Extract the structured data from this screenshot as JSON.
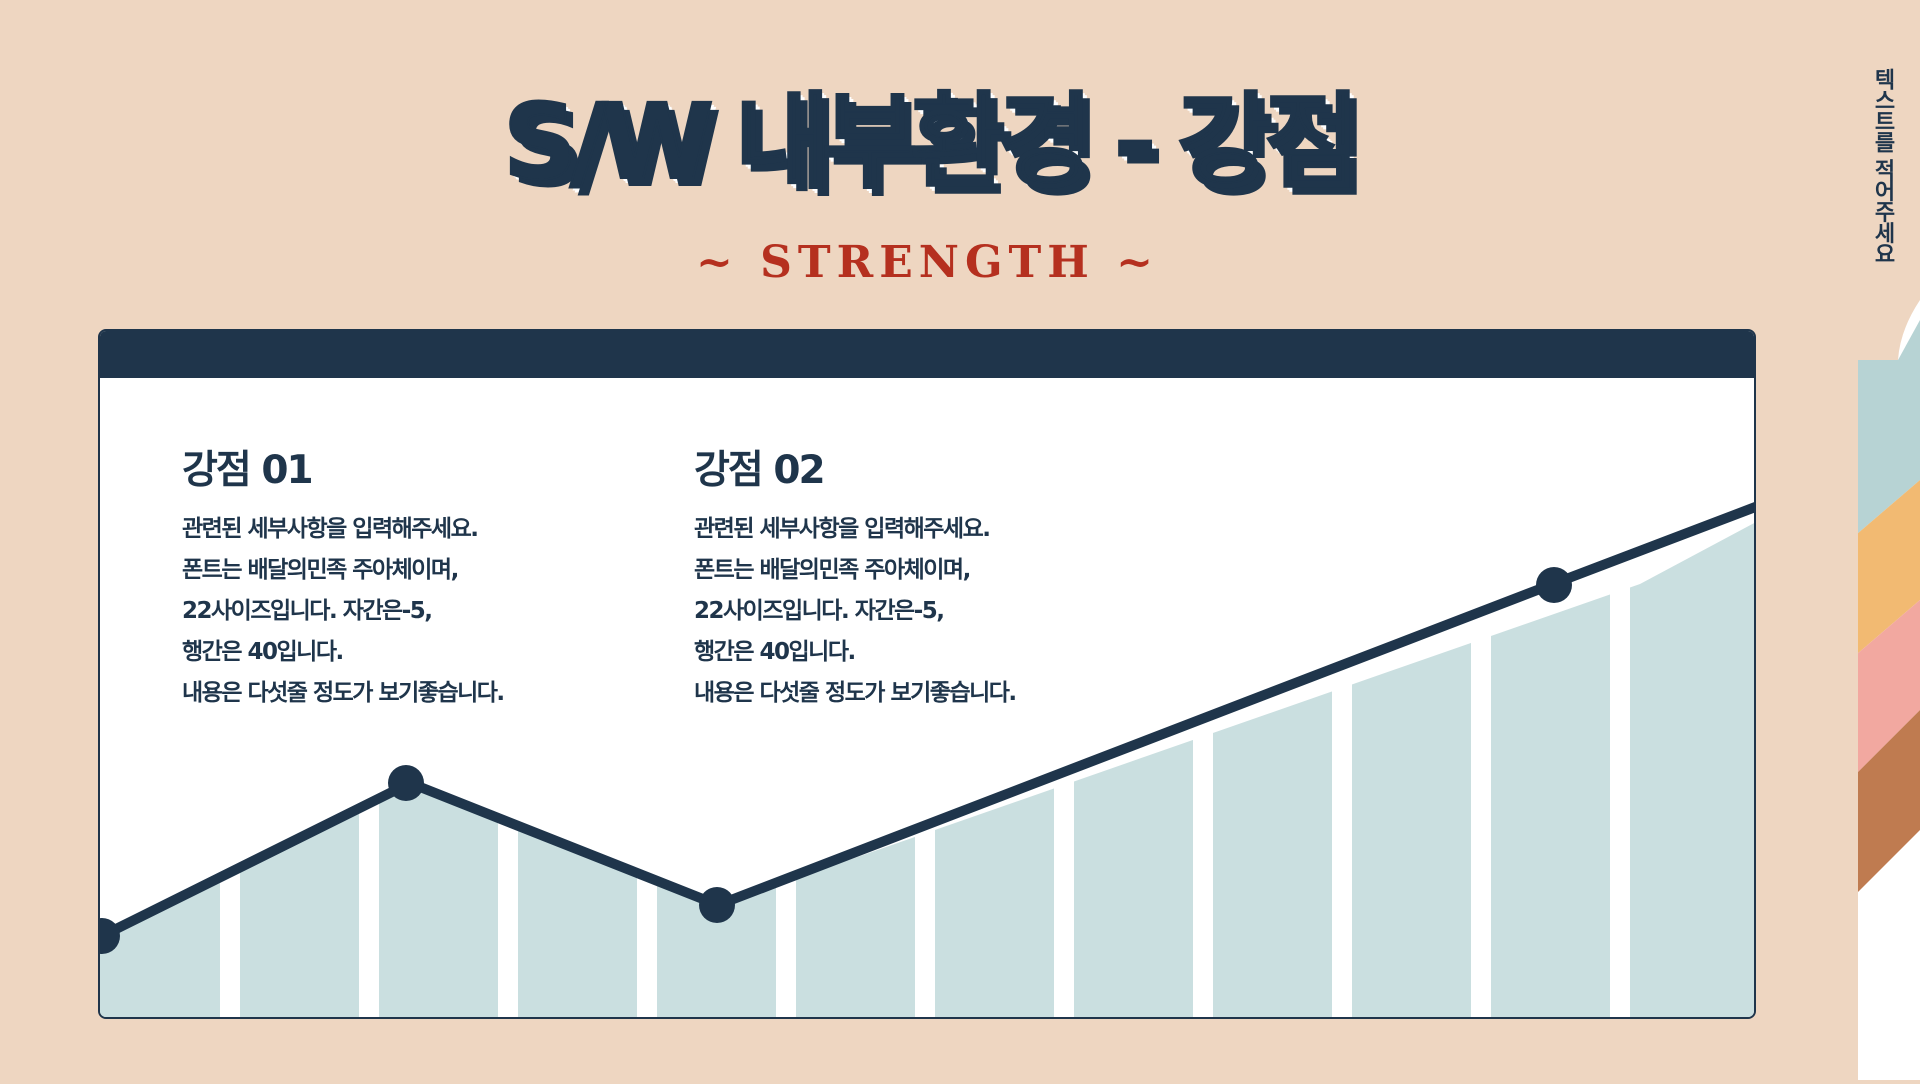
{
  "title": "S/W 내부환경 - 강점",
  "subtitle": "~ STRENGTH ~",
  "side_text": "텍스트를 적어주세요",
  "colors": {
    "background": "#EED6C1",
    "navy": "#1F354B",
    "accent_red": "#B5301F",
    "chart_fill": "#CADFE0",
    "tab_colors": [
      "#B7D3D4",
      "#F2BA72",
      "#F2A8A0",
      "#BF7B50"
    ]
  },
  "blocks": [
    {
      "heading": "강점 01",
      "lines": [
        "관련된 세부사항을 입력해주세요.",
        "폰트는 배달의민족 주아체이며,",
        "22사이즈입니다. 자간은-5,",
        "행간은 40입니다.",
        "내용은 다섯줄 정도가 보기좋습니다."
      ]
    },
    {
      "heading": "강점 02",
      "lines": [
        "관련된 세부사항을 입력해주세요.",
        "폰트는 배달의민족 주아체이며,",
        "22사이즈입니다. 자간은-5,",
        "행간은 40입니다.",
        "내용은 다섯줄 정도가 보기좋습니다."
      ]
    }
  ]
}
